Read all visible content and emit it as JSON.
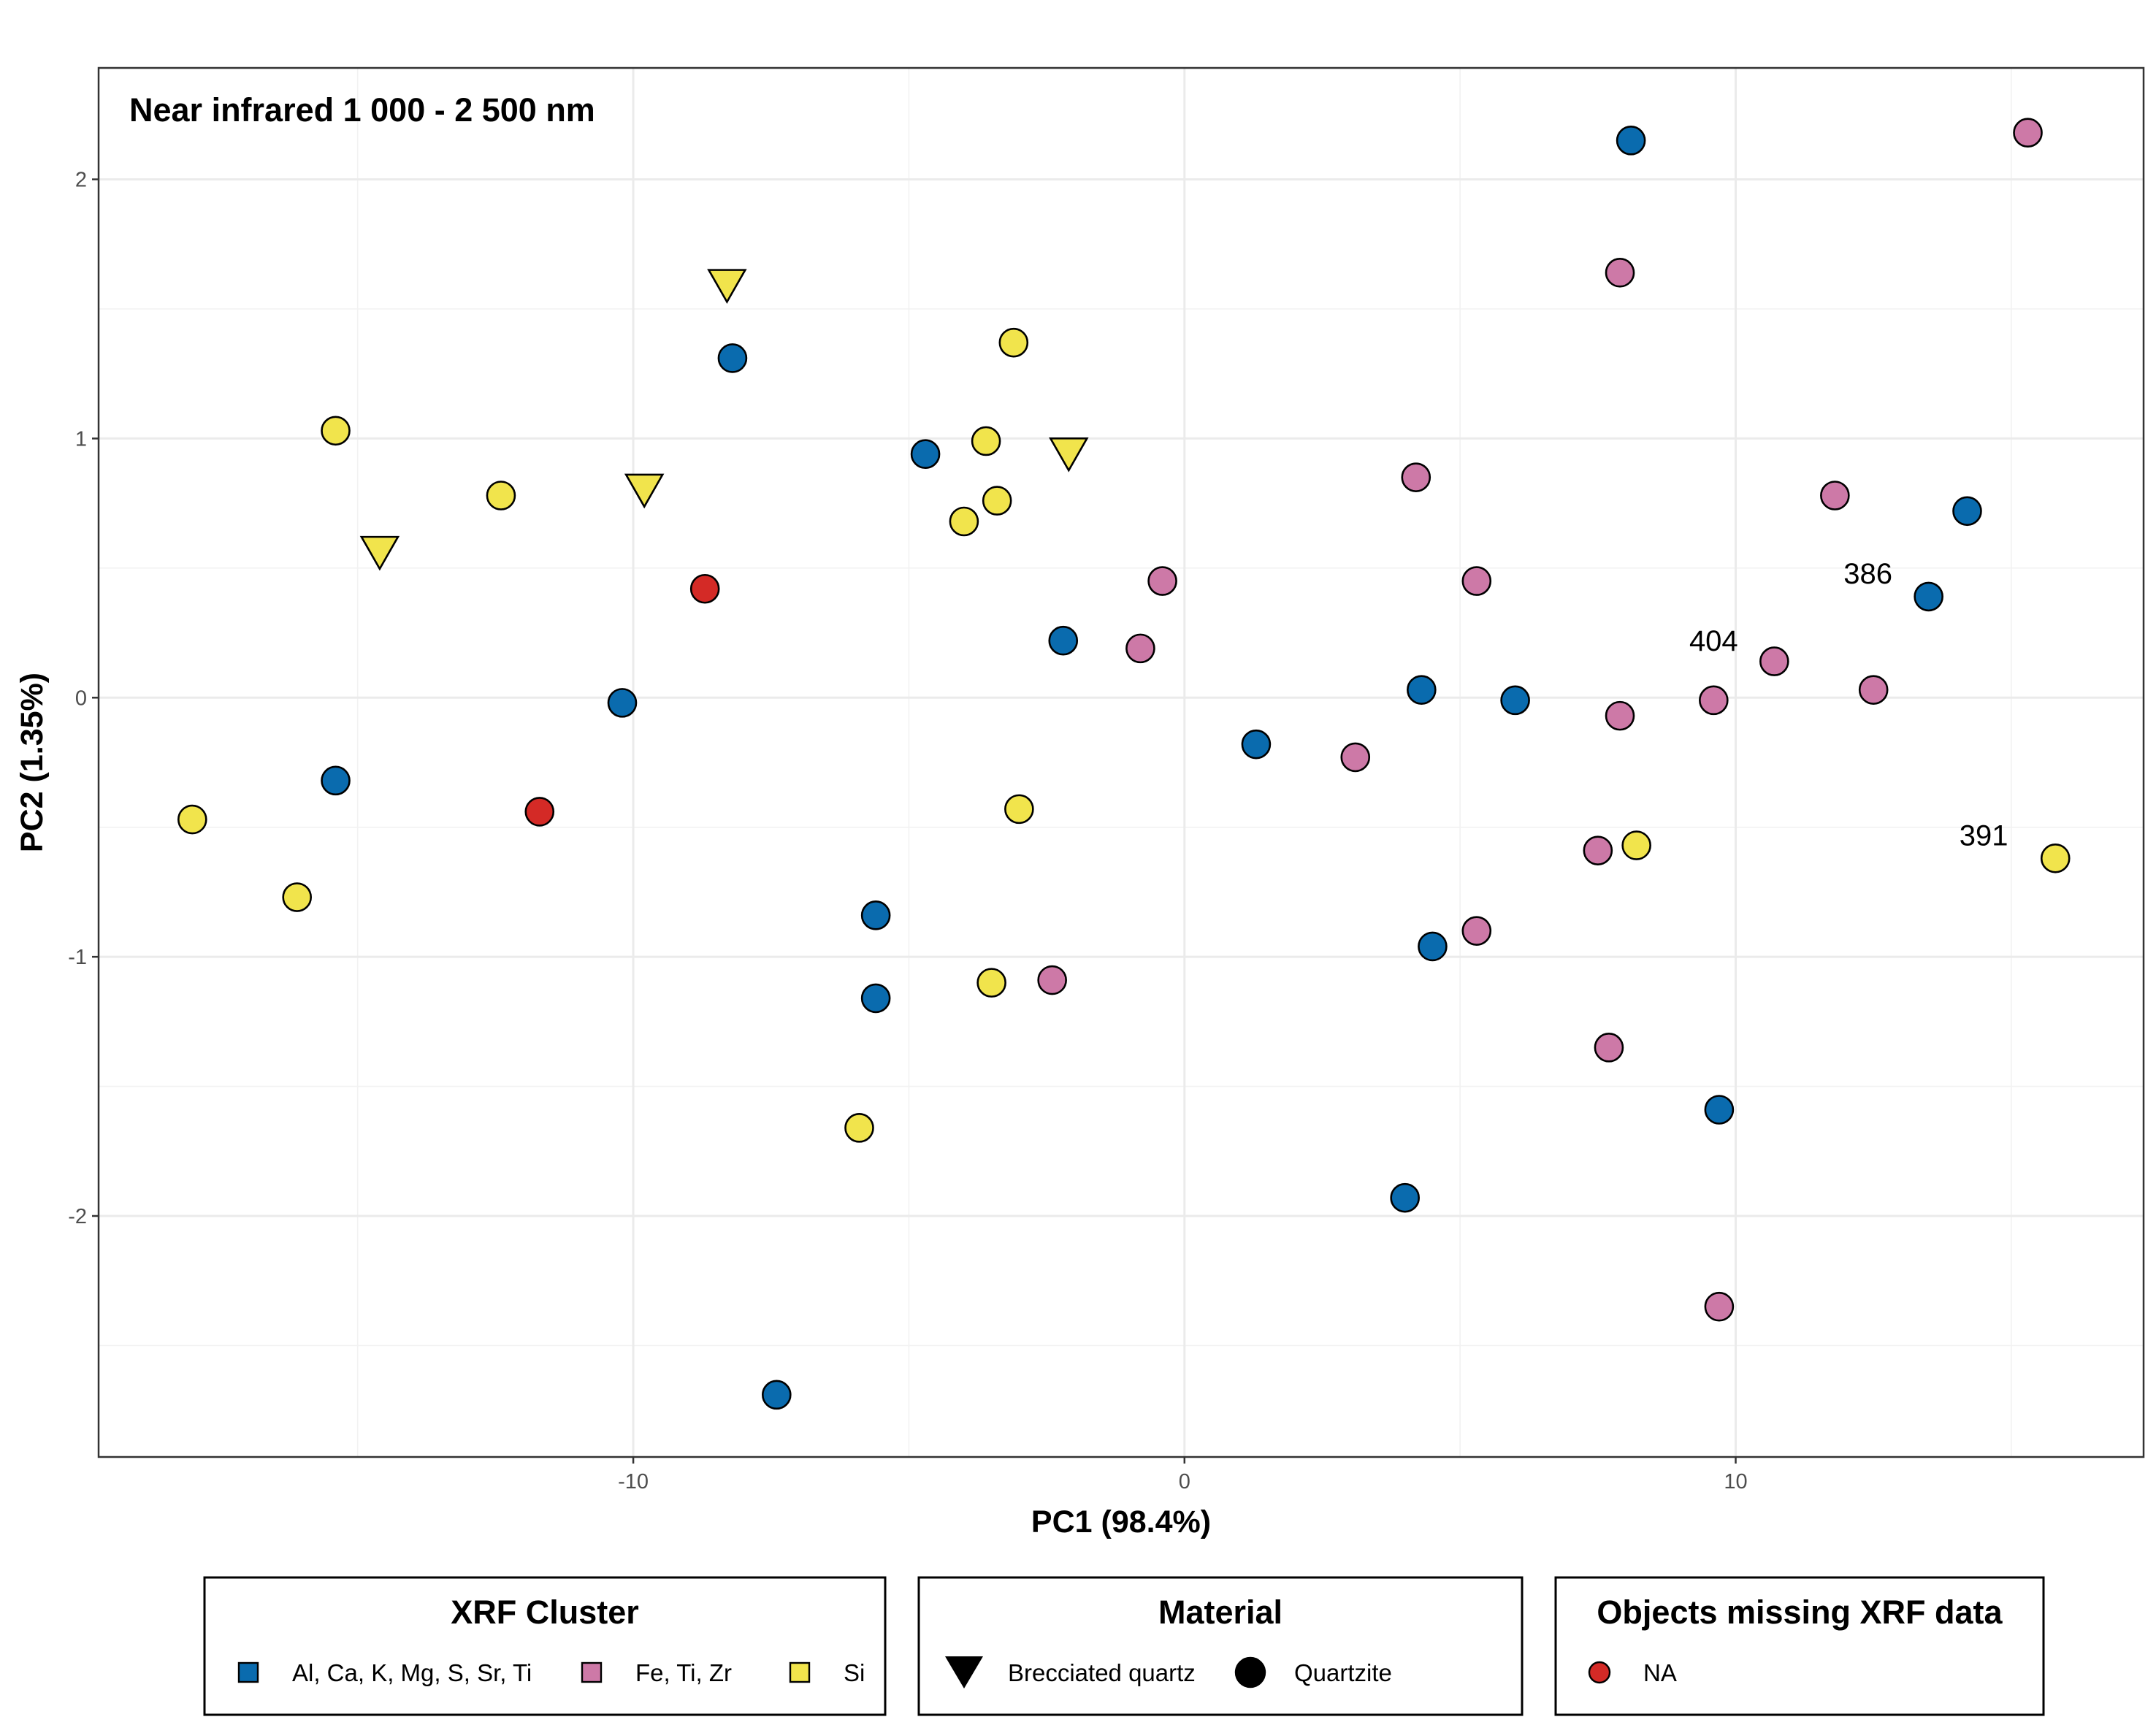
{
  "chart_data": {
    "type": "scatter",
    "title": "Near infrared 1 000 - 2 500 nm",
    "xlabel": "PC1 (98.4%)",
    "ylabel": "PC2 (1.35%)",
    "xlim": [
      -19.7,
      17.4
    ],
    "ylim": [
      -2.93,
      2.43
    ],
    "x_ticks": [
      -10,
      0,
      10
    ],
    "x_tick_labels": [
      "-10",
      "0",
      "10"
    ],
    "y_ticks": [
      -2,
      -1,
      0,
      1,
      2
    ],
    "y_tick_labels": [
      "-2",
      "-1",
      "0",
      "1",
      "2"
    ],
    "grid": true,
    "colors": {
      "blue": "#0a6bae",
      "pink": "#cd79a7",
      "yellow": "#f1e44c",
      "red": "#d42a26"
    },
    "series": [
      {
        "name": "Al, Ca, K, Mg, S, Sr, Ti",
        "color": "#0a6bae",
        "points": [
          {
            "x": 8.1,
            "y": 2.15,
            "shape": "circle"
          },
          {
            "x": -8.2,
            "y": 1.31,
            "shape": "circle"
          },
          {
            "x": -4.7,
            "y": 0.94,
            "shape": "circle"
          },
          {
            "x": 14.2,
            "y": 0.72,
            "shape": "circle"
          },
          {
            "x": 13.5,
            "y": 0.39,
            "shape": "circle"
          },
          {
            "x": -2.2,
            "y": 0.22,
            "shape": "circle"
          },
          {
            "x": 4.3,
            "y": 0.03,
            "shape": "circle"
          },
          {
            "x": 6.0,
            "y": -0.01,
            "shape": "circle"
          },
          {
            "x": -10.2,
            "y": -0.02,
            "shape": "circle"
          },
          {
            "x": 1.3,
            "y": -0.18,
            "shape": "circle"
          },
          {
            "x": -15.4,
            "y": -0.32,
            "shape": "circle"
          },
          {
            "x": -5.6,
            "y": -0.84,
            "shape": "circle"
          },
          {
            "x": 4.5,
            "y": -0.96,
            "shape": "circle"
          },
          {
            "x": -5.6,
            "y": -1.16,
            "shape": "circle"
          },
          {
            "x": 9.7,
            "y": -1.59,
            "shape": "circle"
          },
          {
            "x": 4.0,
            "y": -1.93,
            "shape": "circle"
          },
          {
            "x": -7.4,
            "y": -2.69,
            "shape": "circle"
          }
        ]
      },
      {
        "name": "Fe, Ti, Zr",
        "color": "#cd79a7",
        "points": [
          {
            "x": 15.3,
            "y": 2.18,
            "shape": "circle"
          },
          {
            "x": 7.9,
            "y": 1.64,
            "shape": "circle"
          },
          {
            "x": 4.2,
            "y": 0.85,
            "shape": "circle"
          },
          {
            "x": 11.8,
            "y": 0.78,
            "shape": "circle"
          },
          {
            "x": -0.4,
            "y": 0.45,
            "shape": "circle"
          },
          {
            "x": 5.3,
            "y": 0.45,
            "shape": "circle"
          },
          {
            "x": -0.8,
            "y": 0.19,
            "shape": "circle"
          },
          {
            "x": 10.7,
            "y": 0.14,
            "shape": "circle"
          },
          {
            "x": 12.5,
            "y": 0.03,
            "shape": "circle"
          },
          {
            "x": 9.6,
            "y": -0.01,
            "shape": "circle"
          },
          {
            "x": 7.9,
            "y": -0.07,
            "shape": "circle"
          },
          {
            "x": 3.1,
            "y": -0.23,
            "shape": "circle"
          },
          {
            "x": 7.5,
            "y": -0.59,
            "shape": "circle"
          },
          {
            "x": 5.3,
            "y": -0.9,
            "shape": "circle"
          },
          {
            "x": -2.4,
            "y": -1.09,
            "shape": "circle"
          },
          {
            "x": 7.7,
            "y": -1.35,
            "shape": "circle"
          },
          {
            "x": 9.7,
            "y": -2.35,
            "shape": "circle"
          }
        ]
      },
      {
        "name": "Si",
        "color": "#f1e44c",
        "points": [
          {
            "x": -8.3,
            "y": 1.58,
            "shape": "triangle"
          },
          {
            "x": -9.8,
            "y": 0.79,
            "shape": "triangle"
          },
          {
            "x": -2.1,
            "y": 0.93,
            "shape": "triangle"
          },
          {
            "x": -14.6,
            "y": 0.55,
            "shape": "triangle"
          },
          {
            "x": -3.1,
            "y": 1.37,
            "shape": "circle"
          },
          {
            "x": -15.4,
            "y": 1.03,
            "shape": "circle"
          },
          {
            "x": -3.6,
            "y": 0.99,
            "shape": "circle"
          },
          {
            "x": -12.4,
            "y": 0.78,
            "shape": "circle"
          },
          {
            "x": -3.4,
            "y": 0.76,
            "shape": "circle"
          },
          {
            "x": -4.0,
            "y": 0.68,
            "shape": "circle"
          },
          {
            "x": -3.0,
            "y": -0.43,
            "shape": "circle"
          },
          {
            "x": -18.0,
            "y": -0.47,
            "shape": "circle"
          },
          {
            "x": 8.2,
            "y": -0.57,
            "shape": "circle"
          },
          {
            "x": 15.8,
            "y": -0.62,
            "shape": "circle"
          },
          {
            "x": -16.1,
            "y": -0.77,
            "shape": "circle"
          },
          {
            "x": -3.5,
            "y": -1.1,
            "shape": "circle"
          },
          {
            "x": -5.9,
            "y": -1.66,
            "shape": "circle"
          }
        ]
      },
      {
        "name": "NA",
        "color": "#d42a26",
        "points": [
          {
            "x": -8.7,
            "y": 0.42,
            "shape": "circle"
          },
          {
            "x": -11.7,
            "y": -0.44,
            "shape": "circle"
          }
        ]
      }
    ],
    "annotations": [
      {
        "text": "386",
        "x": 12.4,
        "y": 0.48
      },
      {
        "text": "404",
        "x": 9.6,
        "y": 0.22
      },
      {
        "text": "391",
        "x": 14.5,
        "y": -0.53
      }
    ],
    "legends": [
      {
        "title": "XRF Cluster",
        "items": [
          {
            "label": "Al, Ca, K, Mg, S, Sr, Ti",
            "shape": "square",
            "color": "#0a6bae"
          },
          {
            "label": "Fe, Ti, Zr",
            "shape": "square",
            "color": "#cd79a7"
          },
          {
            "label": "Si",
            "shape": "square",
            "color": "#f1e44c"
          }
        ]
      },
      {
        "title": "Material",
        "items": [
          {
            "label": "Brecciated quartz",
            "shape": "triangle",
            "color": "#000000"
          },
          {
            "label": "Quartzite",
            "shape": "circle",
            "color": "#000000"
          }
        ]
      },
      {
        "title": "Objects missing XRF data",
        "items": [
          {
            "label": "NA",
            "shape": "circle",
            "color": "#d42a26"
          }
        ]
      }
    ],
    "legend_position": "bottom"
  }
}
